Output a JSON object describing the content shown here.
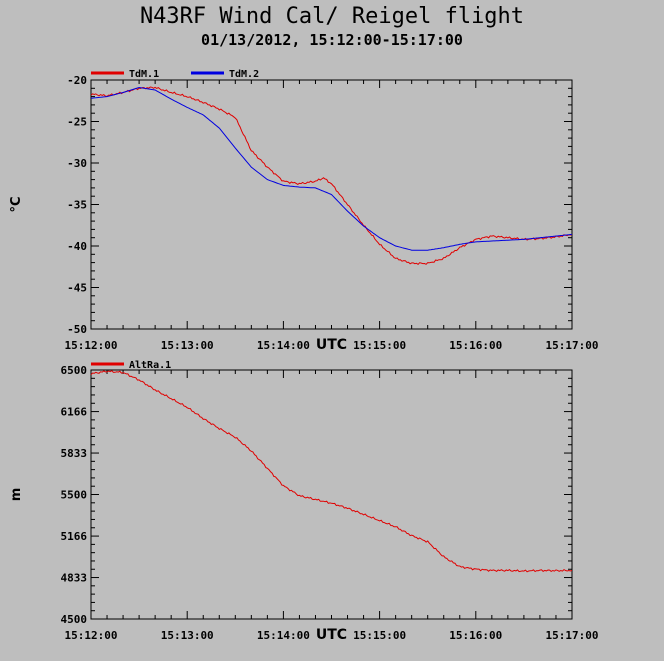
{
  "title": "N43RF Wind Cal/ Reigel flight",
  "subtitle": "01/13/2012, 15:12:00-15:17:00",
  "colors": {
    "background": "#bebebe",
    "plot_bg": "#bebebe",
    "axis": "#000000",
    "red": "#e00000",
    "blue": "#0000e0"
  },
  "chart_data": [
    {
      "type": "line",
      "title": "",
      "xlabel": "UTC",
      "ylabel": "°C",
      "x_ticks": [
        "15:12:00",
        "15:13:00",
        "15:14:00",
        "15:15:00",
        "15:16:00",
        "15:17:00"
      ],
      "xlim": [
        "15:12:00",
        "15:17:00"
      ],
      "ylim": [
        -50,
        -20
      ],
      "y_ticks": [
        "-20",
        "-25",
        "-30",
        "-35",
        "-40",
        "-45",
        "-50"
      ],
      "y_tick_values": [
        -20,
        -25,
        -30,
        -35,
        -40,
        -45,
        -50
      ],
      "legend_position": "top-left",
      "series": [
        {
          "name": "TdM.1",
          "color": "#e00000",
          "x": [
            "15:12:00",
            "15:12:10",
            "15:12:20",
            "15:12:30",
            "15:12:40",
            "15:12:50",
            "15:13:00",
            "15:13:10",
            "15:13:20",
            "15:13:30",
            "15:13:35",
            "15:13:40",
            "15:13:50",
            "15:14:00",
            "15:14:10",
            "15:14:20",
            "15:14:25",
            "15:14:30",
            "15:14:40",
            "15:14:50",
            "15:15:00",
            "15:15:10",
            "15:15:20",
            "15:15:30",
            "15:15:40",
            "15:15:50",
            "15:16:00",
            "15:16:10",
            "15:16:20",
            "15:16:30",
            "15:16:40",
            "15:16:50",
            "15:17:00"
          ],
          "y": [
            -21.7,
            -21.9,
            -21.5,
            -21.0,
            -20.9,
            -21.5,
            -22.0,
            -22.7,
            -23.5,
            -24.5,
            -26.5,
            -28.5,
            -30.5,
            -32.2,
            -32.5,
            -32.2,
            -31.8,
            -32.5,
            -35.0,
            -37.5,
            -39.8,
            -41.5,
            -42.1,
            -42.1,
            -41.5,
            -40.2,
            -39.2,
            -38.8,
            -39.0,
            -39.2,
            -39.1,
            -38.9,
            -38.6
          ]
        },
        {
          "name": "TdM.2",
          "color": "#0000e0",
          "x": [
            "15:12:00",
            "15:12:10",
            "15:12:20",
            "15:12:30",
            "15:12:40",
            "15:12:50",
            "15:13:00",
            "15:13:10",
            "15:13:20",
            "15:13:30",
            "15:13:40",
            "15:13:50",
            "15:14:00",
            "15:14:10",
            "15:14:20",
            "15:14:30",
            "15:14:40",
            "15:14:50",
            "15:15:00",
            "15:15:10",
            "15:15:20",
            "15:15:30",
            "15:15:40",
            "15:15:50",
            "15:16:00",
            "15:16:10",
            "15:16:20",
            "15:16:30",
            "15:16:40",
            "15:16:50",
            "15:17:00"
          ],
          "y": [
            -22.2,
            -22.0,
            -21.5,
            -20.9,
            -21.2,
            -22.3,
            -23.3,
            -24.2,
            -25.8,
            -28.2,
            -30.5,
            -32.0,
            -32.7,
            -32.9,
            -33.0,
            -33.8,
            -35.8,
            -37.6,
            -39.0,
            -40.0,
            -40.5,
            -40.5,
            -40.2,
            -39.8,
            -39.5,
            -39.4,
            -39.3,
            -39.2,
            -39.0,
            -38.8,
            -38.6
          ]
        }
      ]
    },
    {
      "type": "line",
      "title": "",
      "xlabel": "UTC",
      "ylabel": "m",
      "x_ticks": [
        "15:12:00",
        "15:13:00",
        "15:14:00",
        "15:15:00",
        "15:16:00",
        "15:17:00"
      ],
      "xlim": [
        "15:12:00",
        "15:17:00"
      ],
      "ylim": [
        4500,
        6500
      ],
      "y_ticks": [
        "6500",
        "6166",
        "5833",
        "5500",
        "5166",
        "4833",
        "4500"
      ],
      "y_tick_values": [
        6500,
        6166,
        5833,
        5500,
        5166,
        4833,
        4500
      ],
      "legend_position": "top-left",
      "series": [
        {
          "name": "AltRa.1",
          "color": "#e00000",
          "x": [
            "15:12:00",
            "15:12:10",
            "15:12:20",
            "15:12:30",
            "15:12:40",
            "15:12:50",
            "15:13:00",
            "15:13:10",
            "15:13:20",
            "15:13:30",
            "15:13:40",
            "15:13:50",
            "15:14:00",
            "15:14:10",
            "15:14:20",
            "15:14:30",
            "15:14:40",
            "15:14:50",
            "15:15:00",
            "15:15:10",
            "15:15:20",
            "15:15:30",
            "15:15:40",
            "15:15:50",
            "15:16:00",
            "15:16:10",
            "15:16:20",
            "15:16:30",
            "15:16:40",
            "15:16:50",
            "15:17:00"
          ],
          "y": [
            6470,
            6490,
            6480,
            6420,
            6340,
            6270,
            6200,
            6110,
            6030,
            5960,
            5850,
            5710,
            5570,
            5490,
            5460,
            5430,
            5390,
            5340,
            5290,
            5240,
            5170,
            5120,
            5000,
            4920,
            4900,
            4890,
            4890,
            4885,
            4890,
            4888,
            4890
          ]
        }
      ]
    }
  ]
}
